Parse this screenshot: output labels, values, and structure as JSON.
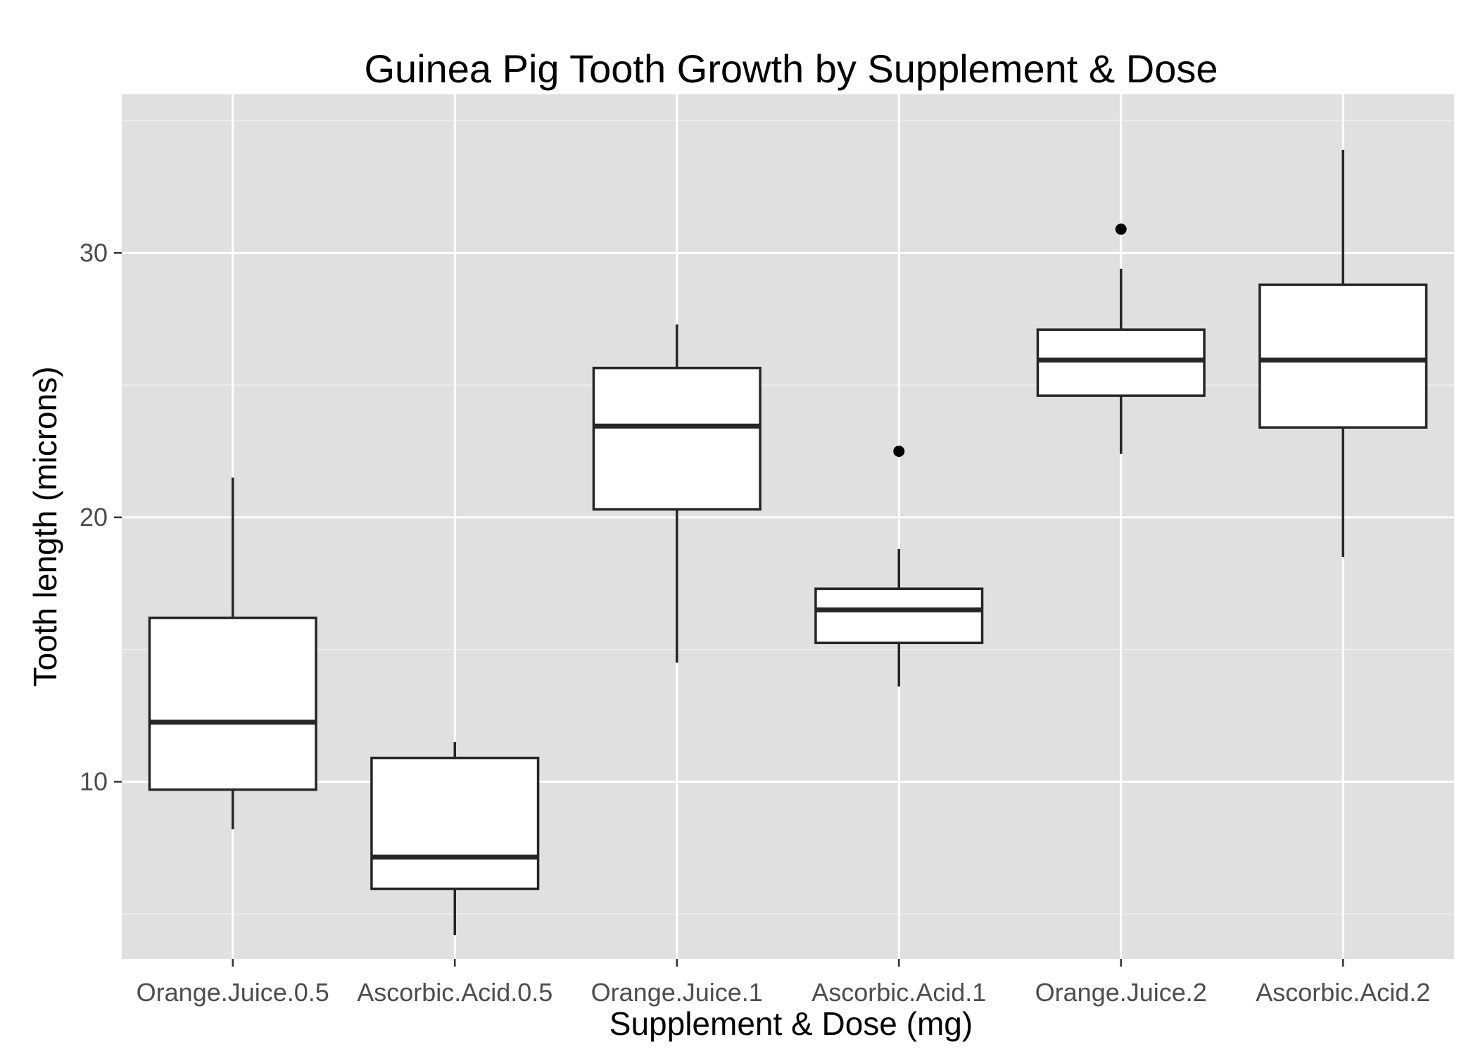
{
  "chart_data": {
    "type": "box",
    "title": "Guinea Pig Tooth Growth by Supplement & Dose",
    "xlabel": "Supplement & Dose (mg)",
    "ylabel": "Tooth length (microns)",
    "categories": [
      "Orange.Juice.0.5",
      "Ascorbic.Acid.0.5",
      "Orange.Juice.1",
      "Ascorbic.Acid.1",
      "Orange.Juice.2",
      "Ascorbic.Acid.2"
    ],
    "y_ticks": [
      10,
      20,
      30
    ],
    "ylim": [
      3.3,
      36
    ],
    "grid": true,
    "colors": {
      "panel": "#e0e0e0",
      "grid_major": "#ffffff",
      "grid_minor": "#f0f0f0",
      "box_fill": "#ffffff",
      "box_stroke": "#262626",
      "outlier": "#000000"
    },
    "boxes": [
      {
        "category": "Orange.Juice.0.5",
        "whisker_low": 8.2,
        "q1": 9.7,
        "median": 12.25,
        "q3": 16.2,
        "whisker_high": 21.5,
        "outliers": []
      },
      {
        "category": "Ascorbic.Acid.0.5",
        "whisker_low": 4.2,
        "q1": 5.95,
        "median": 7.15,
        "q3": 10.9,
        "whisker_high": 11.5,
        "outliers": []
      },
      {
        "category": "Orange.Juice.1",
        "whisker_low": 14.5,
        "q1": 20.3,
        "median": 23.45,
        "q3": 25.65,
        "whisker_high": 27.3,
        "outliers": []
      },
      {
        "category": "Ascorbic.Acid.1",
        "whisker_low": 13.6,
        "q1": 15.25,
        "median": 16.5,
        "q3": 17.3,
        "whisker_high": 18.8,
        "outliers": [
          22.5
        ]
      },
      {
        "category": "Orange.Juice.2",
        "whisker_low": 22.4,
        "q1": 24.6,
        "median": 25.95,
        "q3": 27.1,
        "whisker_high": 29.4,
        "outliers": [
          30.9
        ]
      },
      {
        "category": "Ascorbic.Acid.2",
        "whisker_low": 18.5,
        "q1": 23.4,
        "median": 25.95,
        "q3": 28.8,
        "whisker_high": 33.9,
        "outliers": []
      }
    ]
  }
}
